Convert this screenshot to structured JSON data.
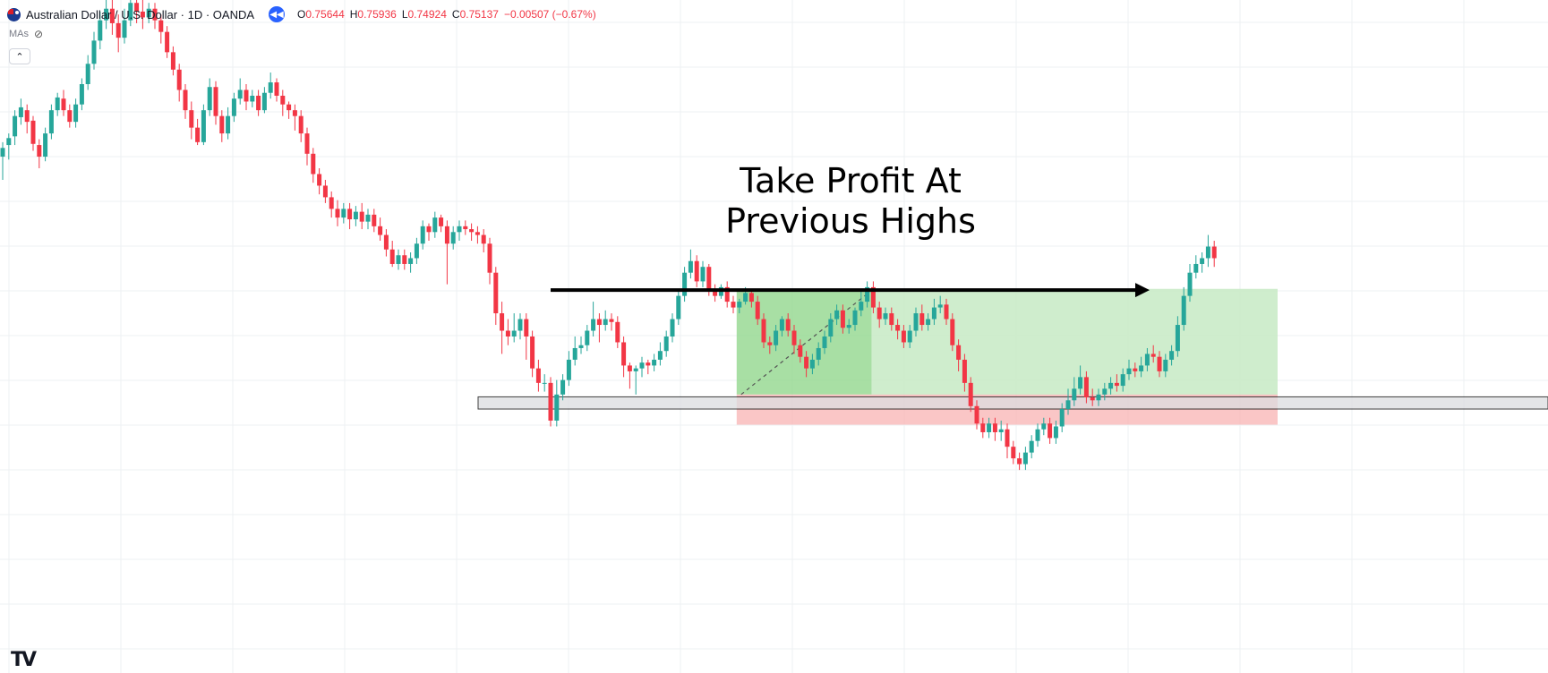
{
  "header": {
    "symbol_title": "Australian Dollar / U.S. Dollar · 1D · OANDA",
    "ohlc": {
      "open_label": "O",
      "open": "0.75644",
      "high_label": "H",
      "high": "0.75936",
      "low_label": "L",
      "low": "0.74924",
      "close_label": "C",
      "close": "0.75137",
      "change": "−0.00507 (−0.67%)"
    },
    "indicator_label": "MAs",
    "collapse_label": "⌃",
    "flag_icon": "aud-flag-icon",
    "replay_icon": "replay-icon"
  },
  "annotation": {
    "line1": "Take Profit At",
    "line2": "Previous Highs"
  },
  "logo": "TV",
  "colors": {
    "up": "#26a69a",
    "down": "#f23645",
    "support_zone": "#dcdde0",
    "profit_zone": "#8fd68a",
    "loss_zone": "#f8b3b3",
    "grid": "#eef0f3"
  },
  "chart_data": {
    "type": "candlestick",
    "title": "Australian Dollar / U.S. Dollar · 1D · OANDA",
    "ylim": [
      0.683,
      0.799
    ],
    "candles": [
      [
        0.772,
        0.7735,
        0.768,
        0.7745
      ],
      [
        0.774,
        0.7752,
        0.7715,
        0.776
      ],
      [
        0.7755,
        0.779,
        0.774,
        0.78
      ],
      [
        0.7788,
        0.7805,
        0.7775,
        0.782
      ],
      [
        0.78,
        0.778,
        0.776,
        0.781
      ],
      [
        0.7782,
        0.7742,
        0.773,
        0.779
      ],
      [
        0.774,
        0.772,
        0.77,
        0.775
      ],
      [
        0.772,
        0.776,
        0.7712,
        0.777
      ],
      [
        0.776,
        0.78,
        0.775,
        0.781
      ],
      [
        0.78,
        0.7822,
        0.779,
        0.783
      ],
      [
        0.782,
        0.78,
        0.779,
        0.7835
      ],
      [
        0.78,
        0.778,
        0.777,
        0.781
      ],
      [
        0.778,
        0.781,
        0.777,
        0.782
      ],
      [
        0.781,
        0.7845,
        0.78,
        0.7855
      ],
      [
        0.7845,
        0.788,
        0.7835,
        0.7895
      ],
      [
        0.788,
        0.792,
        0.787,
        0.7935
      ],
      [
        0.792,
        0.7955,
        0.7905,
        0.797
      ],
      [
        0.7955,
        0.7975,
        0.794,
        0.799
      ],
      [
        0.7975,
        0.795,
        0.793,
        0.799
      ],
      [
        0.795,
        0.7925,
        0.79,
        0.7965
      ],
      [
        0.7925,
        0.7955,
        0.7915,
        0.7975
      ],
      [
        0.7955,
        0.7985,
        0.7945,
        0.799
      ],
      [
        0.7985,
        0.797,
        0.795,
        0.799
      ],
      [
        0.797,
        0.796,
        0.794,
        0.799
      ],
      [
        0.796,
        0.7975,
        0.795,
        0.7985
      ],
      [
        0.7975,
        0.7955,
        0.794,
        0.7985
      ],
      [
        0.7955,
        0.7935,
        0.7915,
        0.7965
      ],
      [
        0.7935,
        0.79,
        0.789,
        0.7945
      ],
      [
        0.79,
        0.787,
        0.786,
        0.791
      ],
      [
        0.787,
        0.7835,
        0.7815,
        0.788
      ],
      [
        0.7835,
        0.78,
        0.7785,
        0.7845
      ],
      [
        0.78,
        0.777,
        0.775,
        0.7815
      ],
      [
        0.777,
        0.7745,
        0.774,
        0.7785
      ],
      [
        0.7745,
        0.78,
        0.774,
        0.781
      ],
      [
        0.78,
        0.784,
        0.779,
        0.7855
      ],
      [
        0.784,
        0.779,
        0.7775,
        0.785
      ],
      [
        0.779,
        0.776,
        0.7745,
        0.78
      ],
      [
        0.776,
        0.779,
        0.775,
        0.7805
      ],
      [
        0.779,
        0.782,
        0.778,
        0.783
      ],
      [
        0.782,
        0.7835,
        0.781,
        0.7855
      ],
      [
        0.7835,
        0.7815,
        0.78,
        0.7845
      ],
      [
        0.7815,
        0.7825,
        0.7805,
        0.7835
      ],
      [
        0.7825,
        0.78,
        0.779,
        0.7835
      ],
      [
        0.78,
        0.783,
        0.7795,
        0.784
      ],
      [
        0.783,
        0.7848,
        0.782,
        0.7865
      ],
      [
        0.7848,
        0.7825,
        0.7815,
        0.7855
      ],
      [
        0.7825,
        0.781,
        0.779,
        0.7835
      ],
      [
        0.781,
        0.78,
        0.7785,
        0.7815
      ],
      [
        0.78,
        0.779,
        0.7765,
        0.781
      ],
      [
        0.779,
        0.776,
        0.7745,
        0.78
      ],
      [
        0.776,
        0.7725,
        0.7705,
        0.777
      ],
      [
        0.7725,
        0.769,
        0.7675,
        0.7735
      ],
      [
        0.769,
        0.767,
        0.7655,
        0.77
      ],
      [
        0.767,
        0.765,
        0.764,
        0.768
      ],
      [
        0.765,
        0.763,
        0.7615,
        0.766
      ],
      [
        0.763,
        0.7615,
        0.76,
        0.7645
      ],
      [
        0.7615,
        0.763,
        0.7605,
        0.764
      ],
      [
        0.763,
        0.7612,
        0.7595,
        0.764
      ],
      [
        0.7612,
        0.7625,
        0.76,
        0.7635
      ],
      [
        0.7625,
        0.7608,
        0.7595,
        0.764
      ],
      [
        0.7608,
        0.762,
        0.7595,
        0.763
      ],
      [
        0.762,
        0.76,
        0.759,
        0.763
      ],
      [
        0.76,
        0.7585,
        0.7575,
        0.7615
      ],
      [
        0.7585,
        0.756,
        0.7548,
        0.7595
      ],
      [
        0.756,
        0.7535,
        0.753,
        0.7575
      ],
      [
        0.7535,
        0.755,
        0.7525,
        0.756
      ],
      [
        0.755,
        0.7535,
        0.7525,
        0.756
      ],
      [
        0.7535,
        0.7545,
        0.752,
        0.7555
      ],
      [
        0.7545,
        0.757,
        0.7535,
        0.758
      ],
      [
        0.757,
        0.76,
        0.756,
        0.761
      ],
      [
        0.76,
        0.759,
        0.7575,
        0.7605
      ],
      [
        0.759,
        0.7615,
        0.758,
        0.7625
      ],
      [
        0.7615,
        0.76,
        0.759,
        0.762
      ],
      [
        0.76,
        0.757,
        0.75,
        0.761
      ],
      [
        0.757,
        0.759,
        0.756,
        0.76
      ],
      [
        0.759,
        0.76,
        0.7575,
        0.761
      ],
      [
        0.76,
        0.7595,
        0.7585,
        0.761
      ],
      [
        0.7595,
        0.759,
        0.7575,
        0.7605
      ],
      [
        0.759,
        0.7585,
        0.757,
        0.76
      ],
      [
        0.7585,
        0.757,
        0.7555,
        0.7595
      ],
      [
        0.757,
        0.752,
        0.75,
        0.758
      ],
      [
        0.752,
        0.745,
        0.743,
        0.753
      ],
      [
        0.745,
        0.742,
        0.738,
        0.747
      ],
      [
        0.742,
        0.741,
        0.7395,
        0.744
      ],
      [
        0.741,
        0.742,
        0.74,
        0.745
      ],
      [
        0.742,
        0.744,
        0.7405,
        0.745
      ],
      [
        0.744,
        0.741,
        0.737,
        0.745
      ],
      [
        0.741,
        0.7355,
        0.734,
        0.742
      ],
      [
        0.7355,
        0.733,
        0.7315,
        0.737
      ],
      [
        0.733,
        0.733,
        0.7315,
        0.7345
      ],
      [
        0.733,
        0.7265,
        0.7255,
        0.734
      ],
      [
        0.7265,
        0.731,
        0.7255,
        0.7335
      ],
      [
        0.731,
        0.7335,
        0.73,
        0.7345
      ],
      [
        0.7335,
        0.737,
        0.7325,
        0.7385
      ],
      [
        0.737,
        0.739,
        0.736,
        0.741
      ],
      [
        0.739,
        0.7395,
        0.738,
        0.741
      ],
      [
        0.7395,
        0.742,
        0.7385,
        0.743
      ],
      [
        0.742,
        0.744,
        0.741,
        0.747
      ],
      [
        0.744,
        0.743,
        0.74,
        0.745
      ],
      [
        0.743,
        0.744,
        0.742,
        0.7455
      ],
      [
        0.744,
        0.7435,
        0.742,
        0.745
      ],
      [
        0.7435,
        0.74,
        0.739,
        0.7445
      ],
      [
        0.74,
        0.736,
        0.734,
        0.741
      ],
      [
        0.736,
        0.735,
        0.732,
        0.7365
      ],
      [
        0.735,
        0.7355,
        0.731,
        0.736
      ],
      [
        0.7355,
        0.7365,
        0.734,
        0.7375
      ],
      [
        0.7365,
        0.736,
        0.7345,
        0.737
      ],
      [
        0.736,
        0.737,
        0.735,
        0.738
      ],
      [
        0.737,
        0.7385,
        0.736,
        0.74
      ],
      [
        0.7385,
        0.741,
        0.7375,
        0.742
      ],
      [
        0.741,
        0.744,
        0.74,
        0.745
      ],
      [
        0.744,
        0.748,
        0.743,
        0.749
      ],
      [
        0.748,
        0.752,
        0.747,
        0.753
      ],
      [
        0.752,
        0.754,
        0.751,
        0.756
      ],
      [
        0.754,
        0.7505,
        0.7495,
        0.755
      ],
      [
        0.7505,
        0.753,
        0.7495,
        0.754
      ],
      [
        0.753,
        0.749,
        0.748,
        0.7535
      ],
      [
        0.749,
        0.748,
        0.747,
        0.75
      ],
      [
        0.748,
        0.7495,
        0.7475,
        0.75
      ],
      [
        0.7495,
        0.747,
        0.746,
        0.7505
      ],
      [
        0.747,
        0.746,
        0.745,
        0.748
      ],
      [
        0.746,
        0.747,
        0.745,
        0.7475
      ],
      [
        0.747,
        0.7485,
        0.7465,
        0.7495
      ],
      [
        0.7485,
        0.747,
        0.746,
        0.749
      ],
      [
        0.747,
        0.744,
        0.743,
        0.748
      ],
      [
        0.744,
        0.74,
        0.739,
        0.745
      ],
      [
        0.74,
        0.7395,
        0.738,
        0.741
      ],
      [
        0.7395,
        0.742,
        0.7385,
        0.743
      ],
      [
        0.742,
        0.744,
        0.741,
        0.7445
      ],
      [
        0.744,
        0.742,
        0.741,
        0.745
      ],
      [
        0.742,
        0.7395,
        0.738,
        0.743
      ],
      [
        0.7395,
        0.7375,
        0.7365,
        0.7405
      ],
      [
        0.7375,
        0.7355,
        0.734,
        0.7385
      ],
      [
        0.7355,
        0.737,
        0.7345,
        0.738
      ],
      [
        0.737,
        0.739,
        0.736,
        0.74
      ],
      [
        0.739,
        0.741,
        0.738,
        0.742
      ],
      [
        0.741,
        0.744,
        0.74,
        0.745
      ],
      [
        0.744,
        0.7455,
        0.743,
        0.7465
      ],
      [
        0.7455,
        0.7425,
        0.7415,
        0.7465
      ],
      [
        0.7425,
        0.743,
        0.7415,
        0.744
      ],
      [
        0.743,
        0.7455,
        0.742,
        0.746
      ],
      [
        0.7455,
        0.747,
        0.7445,
        0.749
      ],
      [
        0.747,
        0.7495,
        0.746,
        0.7505
      ],
      [
        0.7495,
        0.746,
        0.745,
        0.7505
      ],
      [
        0.746,
        0.744,
        0.7425,
        0.747
      ],
      [
        0.744,
        0.745,
        0.743,
        0.746
      ],
      [
        0.745,
        0.743,
        0.742,
        0.746
      ],
      [
        0.743,
        0.742,
        0.7405,
        0.744
      ],
      [
        0.742,
        0.74,
        0.739,
        0.743
      ],
      [
        0.74,
        0.742,
        0.739,
        0.743
      ],
      [
        0.742,
        0.745,
        0.741,
        0.746
      ],
      [
        0.745,
        0.743,
        0.742,
        0.7465
      ],
      [
        0.743,
        0.744,
        0.742,
        0.745
      ],
      [
        0.744,
        0.746,
        0.743,
        0.7475
      ],
      [
        0.746,
        0.7465,
        0.745,
        0.748
      ],
      [
        0.7465,
        0.744,
        0.743,
        0.7475
      ],
      [
        0.744,
        0.7395,
        0.7385,
        0.745
      ],
      [
        0.7395,
        0.737,
        0.735,
        0.7405
      ],
      [
        0.737,
        0.733,
        0.7315,
        0.738
      ],
      [
        0.733,
        0.729,
        0.728,
        0.734
      ],
      [
        0.729,
        0.726,
        0.725,
        0.73
      ],
      [
        0.726,
        0.7245,
        0.7235,
        0.727
      ],
      [
        0.7245,
        0.726,
        0.7235,
        0.727
      ],
      [
        0.726,
        0.7245,
        0.723,
        0.727
      ],
      [
        0.7245,
        0.725,
        0.723,
        0.7265
      ],
      [
        0.725,
        0.722,
        0.72,
        0.726
      ],
      [
        0.722,
        0.72,
        0.719,
        0.723
      ],
      [
        0.72,
        0.719,
        0.718,
        0.721
      ],
      [
        0.719,
        0.721,
        0.718,
        0.722
      ],
      [
        0.721,
        0.723,
        0.72,
        0.724
      ],
      [
        0.723,
        0.725,
        0.722,
        0.726
      ],
      [
        0.725,
        0.726,
        0.724,
        0.727
      ],
      [
        0.726,
        0.7235,
        0.7225,
        0.727
      ],
      [
        0.7235,
        0.7255,
        0.7225,
        0.7265
      ],
      [
        0.7255,
        0.7285,
        0.7245,
        0.7295
      ],
      [
        0.7285,
        0.73,
        0.7275,
        0.732
      ],
      [
        0.73,
        0.732,
        0.729,
        0.734
      ],
      [
        0.732,
        0.734,
        0.731,
        0.736
      ],
      [
        0.734,
        0.7305,
        0.7295,
        0.735
      ],
      [
        0.7305,
        0.73,
        0.729,
        0.732
      ],
      [
        0.73,
        0.731,
        0.729,
        0.732
      ],
      [
        0.731,
        0.732,
        0.73,
        0.733
      ],
      [
        0.732,
        0.733,
        0.731,
        0.734
      ],
      [
        0.733,
        0.7325,
        0.7315,
        0.7345
      ],
      [
        0.7325,
        0.7345,
        0.7315,
        0.7355
      ],
      [
        0.7345,
        0.7355,
        0.7335,
        0.737
      ],
      [
        0.7355,
        0.735,
        0.734,
        0.7365
      ],
      [
        0.735,
        0.736,
        0.734,
        0.7375
      ],
      [
        0.736,
        0.738,
        0.735,
        0.739
      ],
      [
        0.738,
        0.7375,
        0.7365,
        0.7395
      ],
      [
        0.7375,
        0.735,
        0.734,
        0.7385
      ],
      [
        0.735,
        0.737,
        0.734,
        0.738
      ],
      [
        0.737,
        0.7385,
        0.736,
        0.7395
      ],
      [
        0.7385,
        0.743,
        0.7375,
        0.7445
      ],
      [
        0.743,
        0.748,
        0.742,
        0.7495
      ],
      [
        0.748,
        0.752,
        0.747,
        0.7535
      ],
      [
        0.752,
        0.7535,
        0.751,
        0.755
      ],
      [
        0.7535,
        0.7545,
        0.752,
        0.7555
      ],
      [
        0.7545,
        0.7565,
        0.753,
        0.7585
      ],
      [
        0.7565,
        0.7545,
        0.753,
        0.7575
      ]
    ],
    "support_zone": [
      0.7285,
      0.7306
    ],
    "position": {
      "entry": 0.731,
      "target": 0.7492,
      "stop": 0.7258
    },
    "arrow": {
      "price": 0.749
    }
  }
}
